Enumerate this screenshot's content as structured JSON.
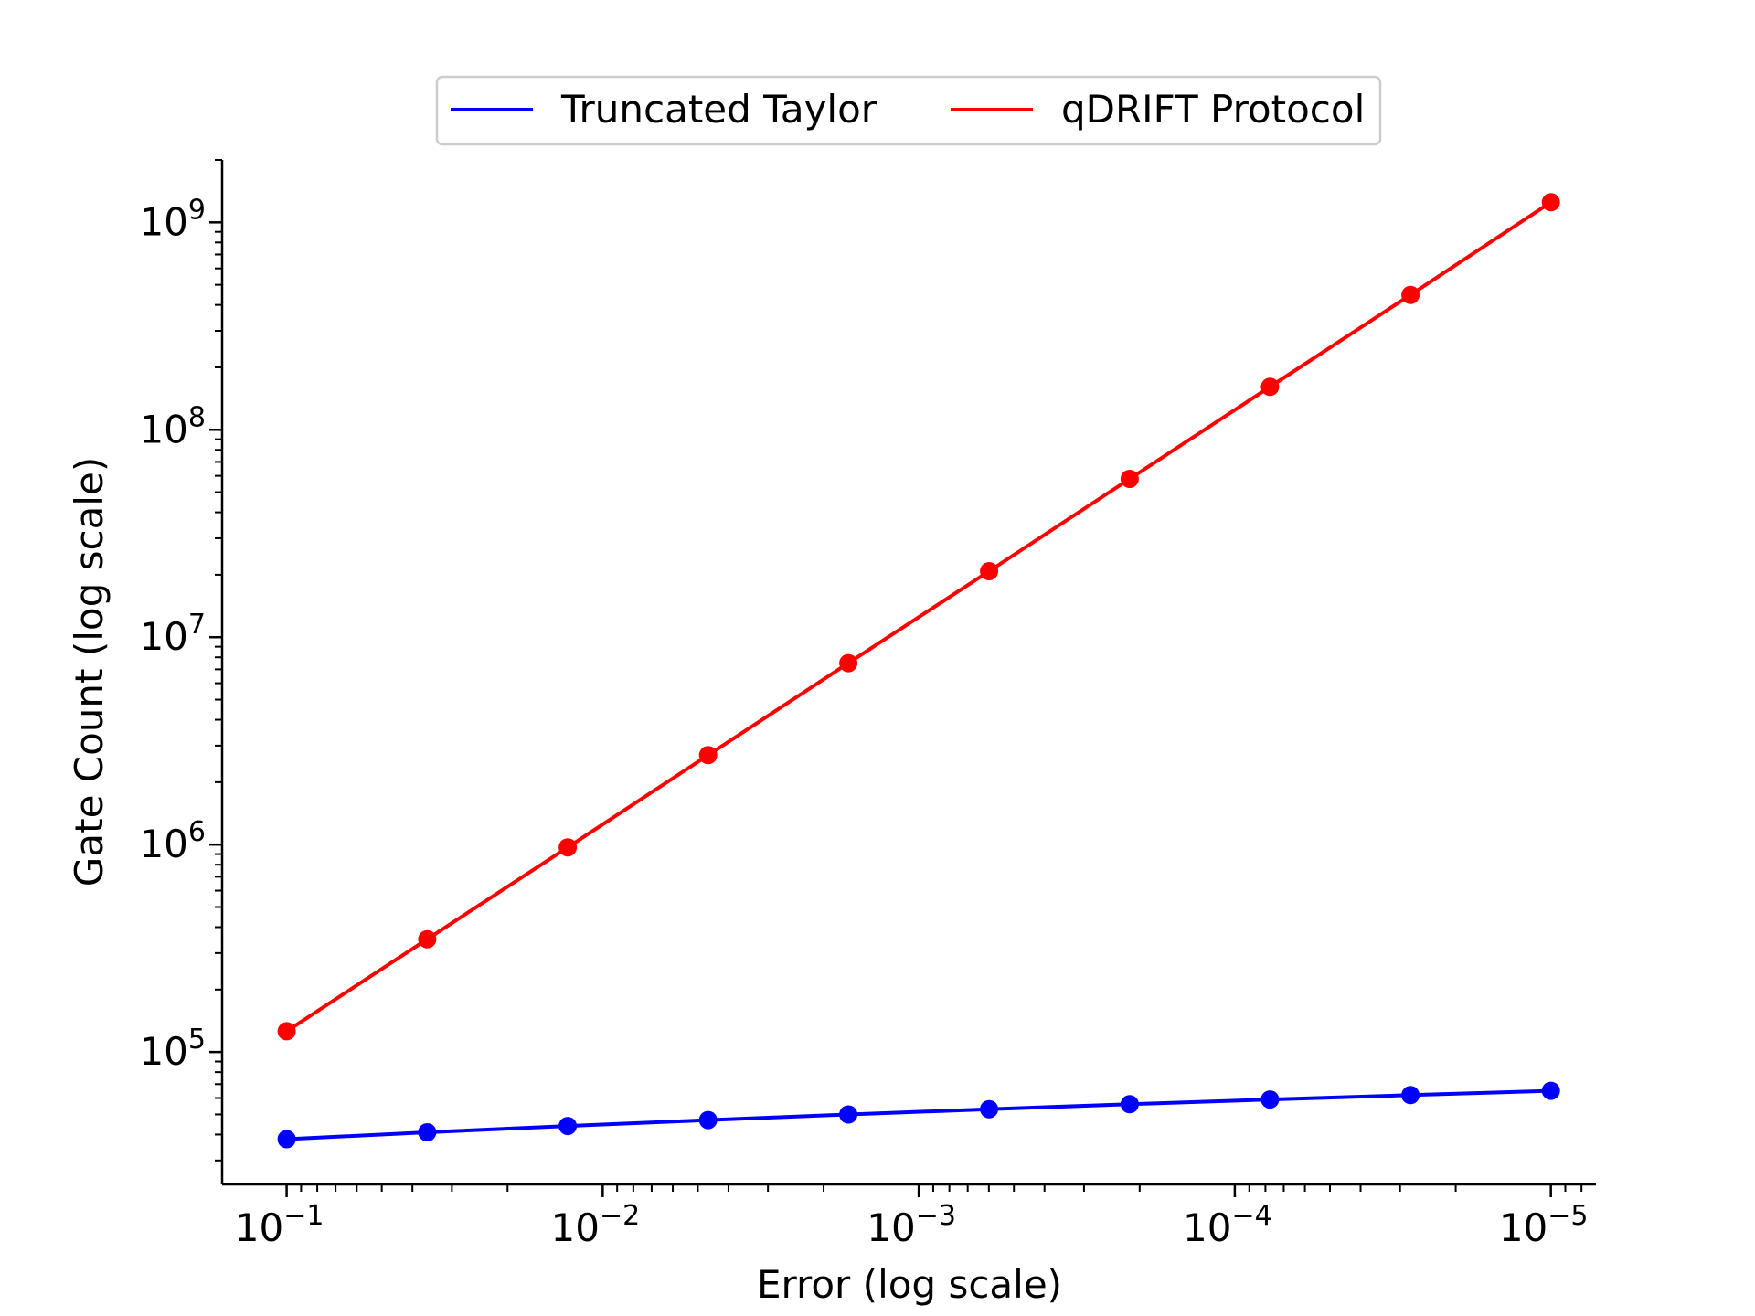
{
  "chart_data": {
    "type": "line",
    "title": "",
    "xlabel": "Error (log  scale)",
    "ylabel": "Gate Count (log scale)",
    "x_scale": "log",
    "y_scale": "log",
    "x_reversed": true,
    "xlim": [
      0.16,
      7.2e-06
    ],
    "ylim": [
      23000,
      2000000000
    ],
    "x_ticks": [
      {
        "value": 0.1,
        "base": "10",
        "exp": "−1"
      },
      {
        "value": 0.01,
        "base": "10",
        "exp": "−2"
      },
      {
        "value": 0.001,
        "base": "10",
        "exp": "−3"
      },
      {
        "value": 0.0001,
        "base": "10",
        "exp": "−4"
      },
      {
        "value": 1e-05,
        "base": "10",
        "exp": "−5"
      }
    ],
    "y_ticks": [
      {
        "value": 100000,
        "base": "10",
        "exp": "5"
      },
      {
        "value": 1000000,
        "base": "10",
        "exp": "6"
      },
      {
        "value": 10000000,
        "base": "10",
        "exp": "7"
      },
      {
        "value": 100000000,
        "base": "10",
        "exp": "8"
      },
      {
        "value": 1000000000,
        "base": "10",
        "exp": "9"
      }
    ],
    "x": [
      0.1,
      0.0359,
      0.0129,
      0.00464,
      0.00167,
      0.000599,
      0.000215,
      7.74e-05,
      2.78e-05,
      1e-05
    ],
    "series": [
      {
        "name": "Truncated Taylor",
        "color": "#0000ff",
        "values": [
          38000,
          41000,
          44000,
          47000,
          50000,
          53000,
          56000,
          59000,
          62000,
          65000
        ]
      },
      {
        "name": "qDRIFT Protocol",
        "color": "#ff0000",
        "values": [
          126000,
          350000,
          970000,
          2700000,
          7500000,
          20800000,
          58000000,
          161000000,
          447000000,
          1250000000
        ]
      }
    ],
    "grid": false,
    "legend_position": "top-center"
  }
}
